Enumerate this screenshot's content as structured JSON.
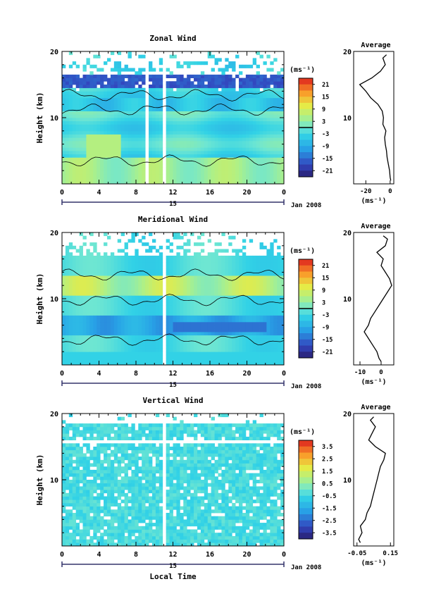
{
  "chart_data": [
    {
      "type": "heatmap",
      "title": "Zonal Wind",
      "ylabel": "Height (km)",
      "xlabel": "",
      "x_ticks": [
        "0",
        "4",
        "8",
        "12",
        "16",
        "20",
        "0"
      ],
      "y_ticks": [
        "10",
        "20"
      ],
      "xlim": [
        0,
        24
      ],
      "ylim": [
        0,
        20
      ],
      "date_tick": "15",
      "date_label": "Jan 2008",
      "colorbar": {
        "unit": "(ms⁻¹)",
        "ticks": [
          "21",
          "15",
          "9",
          "3",
          "-3",
          "-9",
          "-15",
          "-21"
        ],
        "range": [
          -24,
          24
        ]
      },
      "profile": {
        "title": "Average",
        "xlabel": "(ms⁻¹)",
        "x_ticks": [
          "-20",
          "0"
        ],
        "y_ticks": [
          "10",
          "20"
        ],
        "xlim": [
          -30,
          3
        ],
        "height": [
          0.5,
          1,
          2,
          3,
          4,
          5,
          6,
          7,
          8,
          9,
          10,
          11,
          12,
          13,
          14,
          15,
          16,
          17,
          18,
          19,
          19.5
        ],
        "value": [
          0.5,
          0,
          -0.5,
          -1.5,
          -2.5,
          -3,
          -4,
          -4.5,
          -3.5,
          -6,
          -5.5,
          -6.5,
          -10,
          -16,
          -20,
          -25,
          -15,
          -8,
          -4,
          -6,
          -3
        ]
      }
    },
    {
      "type": "heatmap",
      "title": "Meridional Wind",
      "ylabel": "Height (km)",
      "xlabel": "",
      "x_ticks": [
        "0",
        "4",
        "8",
        "12",
        "16",
        "20",
        "0"
      ],
      "y_ticks": [
        "10",
        "20"
      ],
      "xlim": [
        0,
        24
      ],
      "ylim": [
        0,
        20
      ],
      "date_tick": "15",
      "date_label": "Jan 2008",
      "colorbar": {
        "unit": "(ms⁻¹)",
        "ticks": [
          "21",
          "15",
          "9",
          "3",
          "-3",
          "-9",
          "-15",
          "-21"
        ],
        "range": [
          -24,
          24
        ]
      },
      "profile": {
        "title": "Average",
        "xlabel": "(ms⁻¹)",
        "x_ticks": [
          "-10",
          "0"
        ],
        "y_ticks": [
          "10",
          "20"
        ],
        "xlim": [
          -13,
          6
        ],
        "height": [
          0.5,
          1,
          2,
          3,
          4,
          5,
          6,
          7,
          8,
          9,
          10,
          11,
          12,
          13,
          14,
          15,
          16,
          17,
          18,
          19,
          19.5
        ],
        "value": [
          0,
          -1,
          -2,
          -4,
          -6,
          -8,
          -6,
          -5,
          -3,
          -1,
          1,
          3,
          5,
          4,
          2,
          0,
          1,
          -2,
          2,
          3,
          1
        ]
      }
    },
    {
      "type": "heatmap",
      "title": "Vertical Wind",
      "ylabel": "Height (km)",
      "xlabel": "Local Time",
      "x_ticks": [
        "0",
        "4",
        "8",
        "12",
        "16",
        "20",
        "0"
      ],
      "y_ticks": [
        "10",
        "20"
      ],
      "xlim": [
        0,
        24
      ],
      "ylim": [
        0,
        20
      ],
      "date_tick": "15",
      "date_label": "Jan 2008",
      "colorbar": {
        "unit": "(ms⁻¹)",
        "ticks": [
          "3.5",
          "2.5",
          "1.5",
          "0.5",
          "-0.5",
          "-1.5",
          "-2.5",
          "-3.5"
        ],
        "range": [
          -4,
          4
        ]
      },
      "profile": {
        "title": "Average",
        "xlabel": "(ms⁻¹)",
        "x_ticks": [
          "-0.05",
          "0.15"
        ],
        "y_ticks": [
          "10",
          "20"
        ],
        "xlim": [
          -0.07,
          0.17
        ],
        "height": [
          0.5,
          1,
          2,
          3,
          4,
          5,
          6,
          7,
          8,
          9,
          10,
          11,
          12,
          13,
          14,
          15,
          16,
          17,
          18,
          19,
          19.5
        ],
        "value": [
          -0.03,
          -0.04,
          -0.02,
          -0.03,
          0,
          0.01,
          0.03,
          0.04,
          0.05,
          0.06,
          0.07,
          0.08,
          0.09,
          0.11,
          0.12,
          0.06,
          0.02,
          0.04,
          0.06,
          0.03,
          0.05
        ]
      }
    }
  ]
}
